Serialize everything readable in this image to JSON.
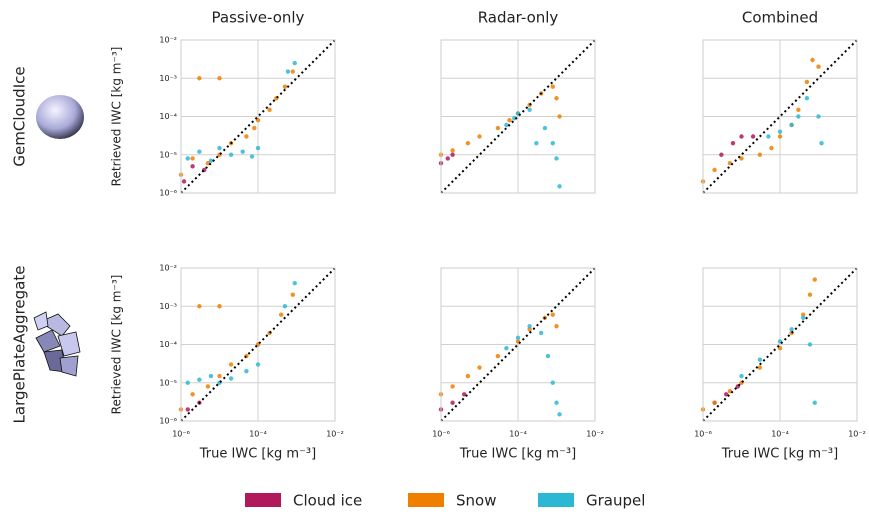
{
  "chart_data": [
    {
      "type": "scatter",
      "title": "Passive-only",
      "row_label": "GemCloudIce",
      "ylabel": "Retrieved IWC [kg  m⁻³]",
      "xlim": [
        1e-06,
        0.01
      ],
      "ylim": [
        1e-06,
        0.01
      ],
      "log_x": true,
      "log_y": true,
      "grid": true,
      "legend": "bottom",
      "xticks": [
        1e-06,
        0.0001,
        0.01
      ],
      "yticks": [
        {
          "value": 1e-06,
          "label": "10⁻⁶"
        },
        {
          "value": 1e-05,
          "label": "10⁻⁵"
        },
        {
          "value": 0.0001,
          "label": "10⁻⁴"
        },
        {
          "value": 0.001,
          "label": "10⁻³"
        },
        {
          "value": 0.01,
          "label": "10⁻²"
        }
      ],
      "series": [
        {
          "name": "Cloud ice",
          "color": "#b0195a",
          "x": [
            1.2e-06,
            2e-06,
            4e-06
          ],
          "y": [
            2e-06,
            5e-06,
            4e-06
          ]
        },
        {
          "name": "Snow",
          "color": "#f07f00",
          "x": [
            1e-06,
            2e-06,
            5e-06,
            1e-05,
            2e-05,
            5e-05,
            8e-05,
            0.0001,
            0.0002,
            0.0003,
            0.0005,
            0.0008,
            3e-06,
            1e-05
          ],
          "y": [
            3e-06,
            8e-06,
            6e-06,
            1e-05,
            2e-05,
            3e-05,
            5e-05,
            8e-05,
            0.00015,
            0.0003,
            0.0006,
            0.0015,
            0.001,
            0.001
          ]
        },
        {
          "name": "Graupel",
          "color": "#2cb8d4",
          "x": [
            1.5e-06,
            3e-06,
            6e-06,
            1e-05,
            2e-05,
            4e-05,
            7e-05,
            0.0001,
            0.0006,
            0.0009
          ],
          "y": [
            8e-06,
            1.2e-05,
            7e-06,
            1.5e-05,
            1e-05,
            1.2e-05,
            9e-06,
            1.5e-05,
            0.0015,
            0.0025
          ]
        }
      ]
    },
    {
      "type": "scatter",
      "title": "Radar-only",
      "xlim": [
        1e-06,
        0.01
      ],
      "ylim": [
        1e-06,
        0.01
      ],
      "log_x": true,
      "log_y": true,
      "grid": true,
      "xticks": [
        1e-06,
        0.0001,
        0.01
      ],
      "yticks": [
        1e-06,
        1e-05,
        0.0001,
        0.001,
        0.01
      ],
      "series": [
        {
          "name": "Cloud ice",
          "color": "#b0195a",
          "x": [
            1e-06,
            1.5e-06,
            2e-06
          ],
          "y": [
            6e-06,
            8e-06,
            1e-05
          ]
        },
        {
          "name": "Snow",
          "color": "#f07f00",
          "x": [
            1e-06,
            2e-06,
            5e-06,
            1e-05,
            3e-05,
            6e-05,
            0.0001,
            0.0002,
            0.0004,
            0.0008,
            0.001,
            0.0012
          ],
          "y": [
            1e-05,
            1.3e-05,
            2e-05,
            3e-05,
            5e-05,
            8e-05,
            0.00012,
            0.0002,
            0.0004,
            0.0006,
            0.0003,
            0.0001
          ]
        },
        {
          "name": "Graupel",
          "color": "#2cb8d4",
          "x": [
            5e-05,
            8e-05,
            0.0001,
            0.0002,
            0.0003,
            0.0005,
            0.0008,
            0.001,
            0.0012
          ],
          "y": [
            6e-05,
            9e-05,
            0.00012,
            0.00015,
            2e-05,
            5e-05,
            2e-05,
            8e-06,
            1.5e-06
          ]
        }
      ]
    },
    {
      "type": "scatter",
      "title": "Combined",
      "xlim": [
        1e-06,
        0.01
      ],
      "ylim": [
        1e-06,
        0.01
      ],
      "log_x": true,
      "log_y": true,
      "grid": true,
      "xticks": [
        1e-06,
        0.0001,
        0.01
      ],
      "yticks": [
        1e-06,
        1e-05,
        0.0001,
        0.001,
        0.01
      ],
      "series": [
        {
          "name": "Cloud ice",
          "color": "#b0195a",
          "x": [
            3e-06,
            6e-06,
            1e-05,
            2e-05
          ],
          "y": [
            1e-05,
            2e-05,
            3e-05,
            3e-05
          ]
        },
        {
          "name": "Snow",
          "color": "#f07f00",
          "x": [
            1e-06,
            2e-06,
            5e-06,
            1e-05,
            3e-05,
            6e-05,
            0.0001,
            0.0002,
            0.0003,
            0.0005,
            0.0007,
            0.001
          ],
          "y": [
            2e-06,
            4e-06,
            6e-06,
            8e-06,
            1e-05,
            1.5e-05,
            3e-05,
            6e-05,
            0.00015,
            0.0008,
            0.003,
            0.002
          ]
        },
        {
          "name": "Graupel",
          "color": "#2cb8d4",
          "x": [
            5e-05,
            0.0001,
            0.0002,
            0.0003,
            0.0005,
            0.001,
            0.0012
          ],
          "y": [
            3e-05,
            4e-05,
            6e-05,
            0.0001,
            0.0003,
            0.0001,
            2e-05
          ]
        }
      ]
    },
    {
      "type": "scatter",
      "row_label": "LargePlateAggregate",
      "ylabel": "Retrieved IWC [kg  m⁻³]",
      "xlabel": "True IWC [kg m⁻³]",
      "xlim": [
        1e-06,
        0.01
      ],
      "ylim": [
        1e-06,
        0.01
      ],
      "log_x": true,
      "log_y": true,
      "grid": true,
      "xticks": [
        {
          "value": 1e-06,
          "label": "10⁻⁶"
        },
        {
          "value": 0.0001,
          "label": "10⁻⁴"
        },
        {
          "value": 0.01,
          "label": "10⁻²"
        }
      ],
      "yticks": [
        {
          "value": 1e-06,
          "label": "10⁻⁶"
        },
        {
          "value": 1e-05,
          "label": "10⁻⁵"
        },
        {
          "value": 0.0001,
          "label": "10⁻⁴"
        },
        {
          "value": 0.001,
          "label": "10⁻³"
        },
        {
          "value": 0.01,
          "label": "10⁻²"
        }
      ],
      "series": [
        {
          "name": "Cloud ice",
          "color": "#b0195a",
          "x": [
            1.5e-06,
            3e-06
          ],
          "y": [
            2e-06,
            3e-06
          ]
        },
        {
          "name": "Snow",
          "color": "#f07f00",
          "x": [
            1e-06,
            2e-06,
            5e-06,
            1e-05,
            2e-05,
            5e-05,
            0.0001,
            0.0002,
            0.0004,
            0.0008,
            3e-06,
            1e-05
          ],
          "y": [
            2e-06,
            5e-06,
            8e-06,
            1.5e-05,
            3e-05,
            5e-05,
            0.0001,
            0.0002,
            0.0006,
            0.002,
            0.001,
            0.001
          ]
        },
        {
          "name": "Graupel",
          "color": "#2cb8d4",
          "x": [
            1.5e-06,
            3e-06,
            6e-06,
            1e-05,
            2e-05,
            5e-05,
            0.0001,
            0.0005,
            0.0009
          ],
          "y": [
            1e-05,
            1.2e-05,
            1.5e-05,
            1e-05,
            1.3e-05,
            2e-05,
            3e-05,
            0.001,
            0.004
          ]
        }
      ]
    },
    {
      "type": "scatter",
      "xlabel": "True IWC [kg m⁻³]",
      "xlim": [
        1e-06,
        0.01
      ],
      "ylim": [
        1e-06,
        0.01
      ],
      "log_x": true,
      "log_y": true,
      "grid": true,
      "xticks": [
        {
          "value": 1e-06,
          "label": "10⁻⁶"
        },
        {
          "value": 0.0001,
          "label": "10⁻⁴"
        },
        {
          "value": 0.01,
          "label": "10⁻²"
        }
      ],
      "yticks": [
        1e-06,
        1e-05,
        0.0001,
        0.001,
        0.01
      ],
      "series": [
        {
          "name": "Cloud ice",
          "color": "#b0195a",
          "x": [
            1e-06,
            2e-06,
            4e-06
          ],
          "y": [
            2e-06,
            3e-06,
            5e-06
          ]
        },
        {
          "name": "Snow",
          "color": "#f07f00",
          "x": [
            1e-06,
            2e-06,
            5e-06,
            1e-05,
            3e-05,
            0.0001,
            0.0002,
            0.0005,
            0.0008,
            0.001
          ],
          "y": [
            5e-06,
            8e-06,
            1.5e-05,
            2.5e-05,
            5e-05,
            0.00012,
            0.00025,
            0.0005,
            0.0006,
            0.0003
          ]
        },
        {
          "name": "Graupel",
          "color": "#2cb8d4",
          "x": [
            5e-05,
            0.0001,
            0.0002,
            0.0004,
            0.0006,
            0.0008,
            0.001,
            0.0012
          ],
          "y": [
            8e-05,
            0.00015,
            0.0003,
            0.0002,
            5e-05,
            1e-05,
            3e-06,
            1.5e-06
          ]
        }
      ]
    },
    {
      "type": "scatter",
      "xlabel": "True IWC [kg m⁻³]",
      "xlim": [
        1e-06,
        0.01
      ],
      "ylim": [
        1e-06,
        0.01
      ],
      "log_x": true,
      "log_y": true,
      "grid": true,
      "xticks": [
        {
          "value": 1e-06,
          "label": "10⁻⁶"
        },
        {
          "value": 0.0001,
          "label": "10⁻⁴"
        },
        {
          "value": 0.01,
          "label": "10⁻²"
        }
      ],
      "yticks": [
        1e-06,
        1e-05,
        0.0001,
        0.001,
        0.01
      ],
      "series": [
        {
          "name": "Cloud ice",
          "color": "#b0195a",
          "x": [
            2e-06,
            4e-06,
            8e-06
          ],
          "y": [
            3e-06,
            5e-06,
            8e-06
          ]
        },
        {
          "name": "Snow",
          "color": "#f07f00",
          "x": [
            1e-06,
            2e-06,
            5e-06,
            1e-05,
            3e-05,
            0.0001,
            0.0002,
            0.0004,
            0.0006,
            0.0008
          ],
          "y": [
            2e-06,
            3e-06,
            6e-06,
            1e-05,
            2.5e-05,
            8e-05,
            0.0002,
            0.0006,
            0.002,
            0.005
          ]
        },
        {
          "name": "Graupel",
          "color": "#2cb8d4",
          "x": [
            1e-05,
            3e-05,
            0.0001,
            0.0002,
            0.0004,
            0.0006,
            0.0008
          ],
          "y": [
            1.5e-05,
            4e-05,
            0.00012,
            0.00025,
            0.0005,
            0.0001,
            3e-06
          ]
        }
      ]
    }
  ]
}
